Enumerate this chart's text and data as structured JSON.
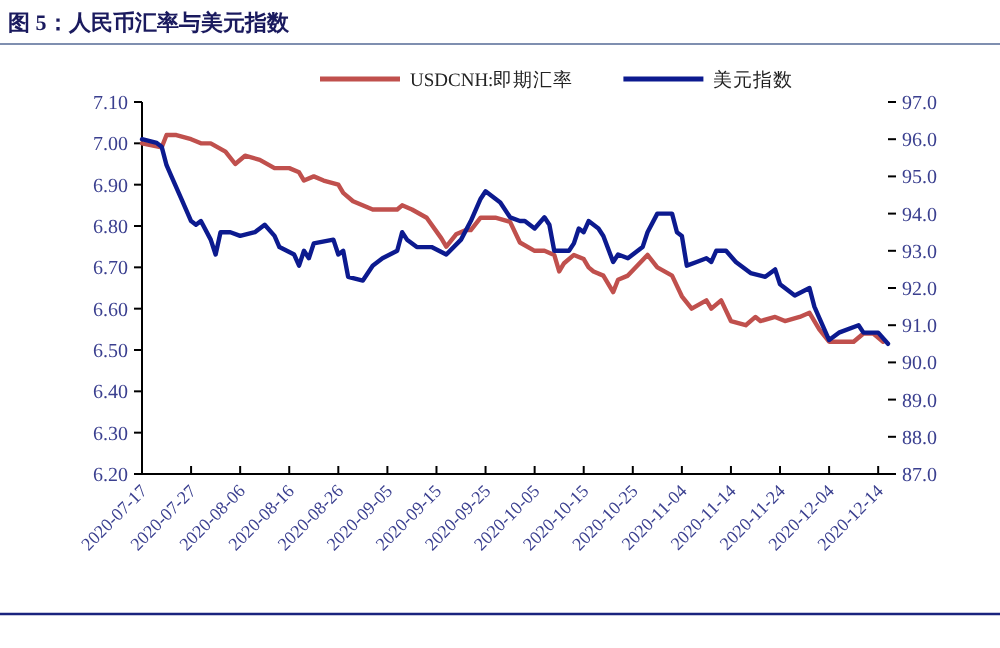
{
  "chart_data": {
    "type": "line",
    "title": "图 5：人民币汇率与美元指数",
    "legend": "top",
    "grid": false,
    "xlim": [
      "2020-07-17",
      "2020-12-16"
    ],
    "xticks": [
      "2020-07-17",
      "2020-07-27",
      "2020-08-06",
      "2020-08-16",
      "2020-08-26",
      "2020-09-05",
      "2020-09-15",
      "2020-09-25",
      "2020-10-05",
      "2020-10-15",
      "2020-10-25",
      "2020-11-04",
      "2020-11-14",
      "2020-11-24",
      "2020-12-04",
      "2020-12-14"
    ],
    "ylim": [
      6.2,
      7.1
    ],
    "yticks": [
      {
        "value": 6.2,
        "label": "6.20"
      },
      {
        "value": 6.3,
        "label": "6.30"
      },
      {
        "value": 6.4,
        "label": "6.40"
      },
      {
        "value": 6.5,
        "label": "6.50"
      },
      {
        "value": 6.6,
        "label": "6.60"
      },
      {
        "value": 6.7,
        "label": "6.70"
      },
      {
        "value": 6.8,
        "label": "6.80"
      },
      {
        "value": 6.9,
        "label": "6.90"
      },
      {
        "value": 7.0,
        "label": "7.00"
      },
      {
        "value": 7.1,
        "label": "7.10"
      }
    ],
    "y2lim": [
      87,
      97
    ],
    "y2ticks": [
      {
        "value": 87,
        "label": "87.0"
      },
      {
        "value": 88,
        "label": "88.0"
      },
      {
        "value": 89,
        "label": "89.0"
      },
      {
        "value": 90,
        "label": "90.0"
      },
      {
        "value": 91,
        "label": "91.0"
      },
      {
        "value": 92,
        "label": "92.0"
      },
      {
        "value": 93,
        "label": "93.0"
      },
      {
        "value": 94,
        "label": "94.0"
      },
      {
        "value": 95,
        "label": "95.0"
      },
      {
        "value": 96,
        "label": "96.0"
      },
      {
        "value": 97,
        "label": "97.0"
      }
    ],
    "series": [
      {
        "name": "USDCNH:即期汇率",
        "color": "#c0504d",
        "x": [
          "2020-07-17",
          "2020-07-21",
          "2020-07-22",
          "2020-07-24",
          "2020-07-27",
          "2020-07-29",
          "2020-07-31",
          "2020-08-03",
          "2020-08-05",
          "2020-08-07",
          "2020-08-10",
          "2020-08-13",
          "2020-08-16",
          "2020-08-18",
          "2020-08-19",
          "2020-08-21",
          "2020-08-23",
          "2020-08-26",
          "2020-08-27",
          "2020-08-29",
          "2020-09-02",
          "2020-09-04",
          "2020-09-07",
          "2020-09-08",
          "2020-09-10",
          "2020-09-13",
          "2020-09-16",
          "2020-09-17",
          "2020-09-19",
          "2020-09-21",
          "2020-09-22",
          "2020-09-24",
          "2020-09-27",
          "2020-09-30",
          "2020-10-02",
          "2020-10-05",
          "2020-10-07",
          "2020-10-09",
          "2020-10-10",
          "2020-10-11",
          "2020-10-13",
          "2020-10-15",
          "2020-10-16",
          "2020-10-17",
          "2020-10-19",
          "2020-10-21",
          "2020-10-22",
          "2020-10-24",
          "2020-10-28",
          "2020-10-30",
          "2020-11-02",
          "2020-11-04",
          "2020-11-06",
          "2020-11-09",
          "2020-11-10",
          "2020-11-12",
          "2020-11-14",
          "2020-11-17",
          "2020-11-19",
          "2020-11-20",
          "2020-11-23",
          "2020-11-25",
          "2020-11-28",
          "2020-11-30",
          "2020-12-02",
          "2020-12-04",
          "2020-12-06",
          "2020-12-09",
          "2020-12-11",
          "2020-12-13",
          "2020-12-15"
        ],
        "values": [
          7.0,
          6.99,
          7.02,
          7.02,
          7.01,
          7.0,
          7.0,
          6.98,
          6.95,
          6.97,
          6.96,
          6.94,
          6.94,
          6.93,
          6.91,
          6.92,
          6.91,
          6.9,
          6.88,
          6.86,
          6.84,
          6.84,
          6.84,
          6.85,
          6.84,
          6.82,
          6.77,
          6.75,
          6.78,
          6.79,
          6.79,
          6.82,
          6.82,
          6.81,
          6.76,
          6.74,
          6.74,
          6.73,
          6.69,
          6.71,
          6.73,
          6.72,
          6.7,
          6.69,
          6.68,
          6.64,
          6.67,
          6.68,
          6.73,
          6.7,
          6.68,
          6.63,
          6.6,
          6.62,
          6.6,
          6.62,
          6.57,
          6.56,
          6.58,
          6.57,
          6.58,
          6.57,
          6.58,
          6.59,
          6.55,
          6.52,
          6.52,
          6.52,
          6.54,
          6.54,
          6.52
        ]
      },
      {
        "name": "美元指数",
        "color": "#0c1a8f",
        "axis": "y2",
        "x": [
          "2020-07-17",
          "2020-07-20",
          "2020-07-21",
          "2020-07-22",
          "2020-07-23",
          "2020-07-25",
          "2020-07-27",
          "2020-07-28",
          "2020-07-29",
          "2020-07-31",
          "2020-08-01",
          "2020-08-02",
          "2020-08-04",
          "2020-08-06",
          "2020-08-09",
          "2020-08-10",
          "2020-08-11",
          "2020-08-13",
          "2020-08-14",
          "2020-08-17",
          "2020-08-18",
          "2020-08-19",
          "2020-08-20",
          "2020-08-21",
          "2020-08-25",
          "2020-08-26",
          "2020-08-27",
          "2020-08-28",
          "2020-08-31",
          "2020-09-02",
          "2020-09-04",
          "2020-09-07",
          "2020-09-08",
          "2020-09-09",
          "2020-09-11",
          "2020-09-14",
          "2020-09-17",
          "2020-09-20",
          "2020-09-22",
          "2020-09-24",
          "2020-09-25",
          "2020-09-28",
          "2020-09-30",
          "2020-10-02",
          "2020-10-03",
          "2020-10-05",
          "2020-10-07",
          "2020-10-08",
          "2020-10-09",
          "2020-10-12",
          "2020-10-13",
          "2020-10-14",
          "2020-10-15",
          "2020-10-16",
          "2020-10-18",
          "2020-10-19",
          "2020-10-21",
          "2020-10-22",
          "2020-10-24",
          "2020-10-27",
          "2020-10-28",
          "2020-10-30",
          "2020-11-02",
          "2020-11-03",
          "2020-11-04",
          "2020-11-05",
          "2020-11-07",
          "2020-11-09",
          "2020-11-10",
          "2020-11-11",
          "2020-11-13",
          "2020-11-15",
          "2020-11-18",
          "2020-11-21",
          "2020-11-23",
          "2020-11-24",
          "2020-11-25",
          "2020-11-27",
          "2020-11-30",
          "2020-12-01",
          "2020-12-02",
          "2020-12-04",
          "2020-12-06",
          "2020-12-10",
          "2020-12-11",
          "2020-12-14",
          "2020-12-16"
        ],
        "values": [
          96.0,
          95.9,
          95.8,
          95.3,
          95.0,
          94.4,
          93.8,
          93.7,
          93.8,
          93.3,
          92.9,
          93.5,
          93.5,
          93.4,
          93.5,
          93.6,
          93.7,
          93.4,
          93.1,
          92.9,
          92.6,
          93.0,
          92.8,
          93.2,
          93.3,
          92.9,
          93.0,
          92.3,
          92.2,
          92.6,
          92.8,
          93.0,
          93.5,
          93.3,
          93.1,
          93.1,
          92.9,
          93.3,
          93.8,
          94.4,
          94.6,
          94.3,
          93.9,
          93.8,
          93.8,
          93.6,
          93.9,
          93.7,
          93.0,
          93.0,
          93.2,
          93.6,
          93.5,
          93.8,
          93.6,
          93.4,
          92.7,
          92.9,
          92.8,
          93.1,
          93.5,
          94.0,
          94.0,
          93.5,
          93.4,
          92.6,
          92.7,
          92.8,
          92.7,
          93.0,
          93.0,
          92.7,
          92.4,
          92.3,
          92.5,
          92.1,
          92.0,
          91.8,
          92.0,
          91.5,
          91.2,
          90.6,
          90.8,
          91.0,
          90.8,
          90.8,
          90.5
        ]
      }
    ]
  }
}
